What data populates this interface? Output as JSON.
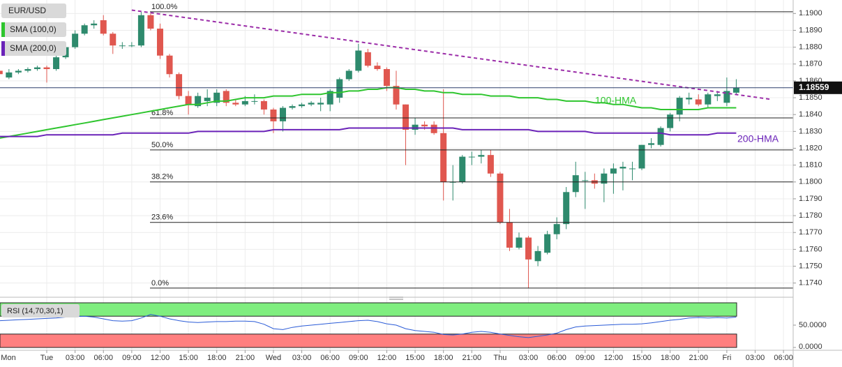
{
  "chart_data": {
    "type": "candlestick",
    "symbol": "EUR/USD",
    "categories": [
      "Mon",
      null,
      null,
      null,
      null,
      "Tue",
      null,
      null,
      "03:00",
      null,
      null,
      "06:00",
      null,
      null,
      "09:00",
      null,
      null,
      "12:00",
      null,
      null,
      "15:00",
      null,
      null,
      "18:00",
      null,
      null,
      "21:00",
      null,
      null,
      "Wed",
      null,
      null,
      "03:00",
      null,
      null,
      "06:00",
      null,
      null,
      "09:00",
      null,
      null,
      "12:00",
      null,
      null,
      "15:00",
      null,
      null,
      "18:00",
      null,
      null,
      "21:00",
      null,
      null,
      "Thu",
      null,
      null,
      "03:00",
      null,
      null,
      "06:00",
      null,
      null,
      "09:00",
      null,
      null,
      "12:00",
      null,
      null,
      "15:00",
      null,
      null,
      "18:00",
      null,
      null,
      "21:00",
      null,
      null,
      "Fri",
      null,
      null,
      "03:00",
      null,
      null,
      "06:00"
    ],
    "open": [
      1.1866,
      1.1862,
      1.1865,
      1.1866,
      1.1867,
      1.1868,
      1.1867,
      1.1874,
      1.188,
      1.1888,
      1.1893,
      1.1896,
      1.1888,
      1.1881,
      1.1881,
      1.1881,
      1.1899,
      1.1891,
      1.1875,
      1.1864,
      1.1851,
      1.1845,
      1.1848,
      1.1847,
      1.1854,
      1.1847,
      1.1846,
      1.1848,
      1.1848,
      1.1843,
      1.1836,
      1.1844,
      1.1845,
      1.1846,
      1.1846,
      1.1846,
      1.185,
      1.1861,
      1.1866,
      1.1877,
      1.1869,
      1.1867,
      1.1857,
      1.1846,
      1.1831,
      1.1834,
      1.1834,
      1.1829,
      1.18,
      1.18,
      1.1815,
      1.1815,
      1.1816,
      1.1805,
      1.1776,
      1.1761,
      1.1767,
      1.1753,
      1.1758,
      1.1769,
      1.1775,
      1.1794,
      1.1801,
      1.1801,
      1.1799,
      1.1805,
      1.1808,
      1.1808,
      1.1808,
      1.1822,
      1.1822,
      1.1832,
      1.184,
      1.1849,
      1.1849,
      1.1846,
      1.1851,
      1.1847,
      1.1853,
      null,
      null,
      null,
      null,
      null
    ],
    "high": [
      1.1868,
      1.1867,
      1.1867,
      1.1868,
      1.1869,
      1.1869,
      1.1876,
      1.1882,
      1.189,
      1.1894,
      1.1896,
      1.1899,
      1.1889,
      1.1883,
      1.1883,
      1.1901,
      1.19,
      1.1894,
      1.1876,
      1.1865,
      1.1854,
      1.1853,
      1.1855,
      1.1855,
      1.1855,
      1.1849,
      1.1851,
      1.1852,
      1.1849,
      1.1844,
      1.1845,
      1.1846,
      1.1847,
      1.1848,
      1.185,
      1.1855,
      1.1862,
      1.1867,
      1.1882,
      1.1879,
      1.1871,
      1.1868,
      1.1866,
      1.1846,
      1.1838,
      1.1836,
      1.1836,
      1.1855,
      1.181,
      1.1816,
      1.1818,
      1.1819,
      1.1819,
      1.1806,
      1.1784,
      1.177,
      1.1768,
      1.1762,
      1.1771,
      1.1779,
      1.1797,
      1.1812,
      1.1806,
      1.1805,
      1.1808,
      1.1811,
      1.1812,
      1.1812,
      1.1822,
      1.1826,
      1.1833,
      1.1841,
      1.1851,
      1.1853,
      1.1852,
      1.1853,
      1.1854,
      1.1862,
      1.1861,
      null,
      null,
      null,
      null,
      null
    ],
    "low": [
      1.1863,
      1.1861,
      1.1864,
      1.1865,
      1.1866,
      1.1859,
      1.1866,
      1.1873,
      1.1879,
      1.1887,
      1.1891,
      1.1887,
      1.1876,
      1.1879,
      1.188,
      1.188,
      1.189,
      1.1873,
      1.1862,
      1.1849,
      1.184,
      1.1844,
      1.1845,
      1.1845,
      1.1845,
      1.1845,
      1.1845,
      1.1846,
      1.184,
      1.1829,
      1.183,
      1.1843,
      1.1844,
      1.1845,
      1.1842,
      1.1842,
      1.1847,
      1.186,
      1.1865,
      1.1868,
      1.1866,
      1.1854,
      1.1843,
      1.181,
      1.1828,
      1.1831,
      1.1828,
      1.1789,
      1.1789,
      1.1799,
      1.181,
      1.1811,
      1.1803,
      1.1775,
      1.1759,
      1.176,
      1.1737,
      1.175,
      1.1757,
      1.1766,
      1.1772,
      1.1791,
      1.1784,
      1.1796,
      1.1788,
      1.1793,
      1.1795,
      1.1801,
      1.1807,
      1.182,
      1.1821,
      1.183,
      1.1836,
      1.1846,
      1.1845,
      1.1844,
      1.1848,
      1.1845,
      1.1852,
      null,
      null,
      null,
      null,
      null
    ],
    "close": [
      1.1864,
      1.1865,
      1.1866,
      1.1867,
      1.1868,
      1.1867,
      1.1874,
      1.188,
      1.1888,
      1.1893,
      1.1894,
      1.1888,
      1.1881,
      1.1881,
      1.1881,
      1.1899,
      1.1891,
      1.1875,
      1.1864,
      1.1851,
      1.1846,
      1.1851,
      1.185,
      1.1853,
      1.1847,
      1.1846,
      1.1848,
      1.1848,
      1.1843,
      1.1836,
      1.1844,
      1.1845,
      1.1846,
      1.1847,
      1.1847,
      1.1854,
      1.1861,
      1.1866,
      1.1878,
      1.1869,
      1.1867,
      1.1857,
      1.1846,
      1.1831,
      1.1834,
      1.1833,
      1.1829,
      1.18,
      1.18,
      1.1815,
      1.1815,
      1.1816,
      1.1805,
      1.1776,
      1.1761,
      1.1767,
      1.1754,
      1.1759,
      1.1769,
      1.1775,
      1.1794,
      1.1804,
      1.1801,
      1.1799,
      1.1805,
      1.1808,
      1.1809,
      1.1808,
      1.1822,
      1.1823,
      1.1832,
      1.184,
      1.185,
      1.185,
      1.1846,
      1.1852,
      1.1852,
      1.1854,
      1.18559,
      null,
      null,
      null,
      null,
      null
    ],
    "up_color": "#2e8a6d",
    "down_color": "#e0574f",
    "series": [
      {
        "name": "SMA (100,0)",
        "label": "100-HMA",
        "color": "#2ec52e",
        "values": [
          1.1826,
          1.1827,
          1.1828,
          1.1829,
          1.183,
          1.1831,
          1.1832,
          1.1833,
          1.1834,
          1.1835,
          1.1836,
          1.1837,
          1.1838,
          1.1839,
          1.184,
          1.1841,
          1.1842,
          1.1843,
          1.1844,
          1.1845,
          1.1846,
          1.1846,
          1.1847,
          1.1848,
          1.1848,
          1.1849,
          1.185,
          1.185,
          1.185,
          1.1851,
          1.1851,
          1.1851,
          1.1852,
          1.1852,
          1.1852,
          1.1853,
          1.1853,
          1.1854,
          1.1854,
          1.1855,
          1.1855,
          1.1856,
          1.1856,
          1.1855,
          1.1855,
          1.1854,
          1.1854,
          1.1853,
          1.1853,
          1.1852,
          1.1852,
          1.1852,
          1.1851,
          1.1851,
          1.1851,
          1.185,
          1.185,
          1.185,
          1.1849,
          1.1849,
          1.1848,
          1.1848,
          1.1848,
          1.1847,
          1.1847,
          1.1846,
          1.1846,
          1.1845,
          1.1844,
          1.1844,
          1.1843,
          1.1843,
          1.1843,
          1.1843,
          1.1843,
          1.1844,
          1.1844,
          1.1844,
          1.1844,
          null,
          null,
          null,
          null,
          null
        ]
      },
      {
        "name": "SMA (200,0)",
        "label": "200-HMA",
        "color": "#6a22b8",
        "values": [
          1.1827,
          1.1827,
          1.1827,
          1.1827,
          1.1827,
          1.1828,
          1.1828,
          1.1828,
          1.1828,
          1.1828,
          1.1828,
          1.1828,
          1.1828,
          1.1829,
          1.1829,
          1.1829,
          1.1829,
          1.1829,
          1.1829,
          1.1829,
          1.1829,
          1.183,
          1.183,
          1.183,
          1.183,
          1.183,
          1.183,
          1.183,
          1.183,
          1.1831,
          1.1831,
          1.1831,
          1.1831,
          1.1831,
          1.1831,
          1.1831,
          1.1831,
          1.1832,
          1.1832,
          1.1832,
          1.1832,
          1.1832,
          1.1832,
          1.1832,
          1.1832,
          1.1832,
          1.1832,
          1.1832,
          1.1832,
          1.1831,
          1.1831,
          1.1831,
          1.1831,
          1.1831,
          1.1831,
          1.1831,
          1.1831,
          1.183,
          1.183,
          1.183,
          1.183,
          1.183,
          1.183,
          1.1829,
          1.1829,
          1.1829,
          1.1829,
          1.1829,
          1.1829,
          1.1829,
          1.1829,
          1.1828,
          1.1828,
          1.1828,
          1.1828,
          1.1828,
          1.1829,
          1.1829,
          1.1829,
          null,
          null,
          null,
          null,
          null
        ]
      }
    ],
    "fib_levels": [
      {
        "label": "100.0%",
        "value": 1.1901
      },
      {
        "label": "61.8%",
        "value": 1.1838
      },
      {
        "label": "50.0%",
        "value": 1.1819
      },
      {
        "label": "38.2%",
        "value": 1.18
      },
      {
        "label": "23.6%",
        "value": 1.1776
      },
      {
        "label": "0.0%",
        "value": 1.1737
      }
    ],
    "trendline": {
      "x": [
        14,
        81.7
      ],
      "y": [
        1.1902,
        1.1849
      ],
      "color": "#9b2ca8"
    },
    "last_price": 1.18559,
    "ylim": [
      1.1732,
      1.1908
    ],
    "yticks": [
      {
        "value": 1.174,
        "label": "1.1740"
      },
      {
        "value": 1.175,
        "label": "1.1750"
      },
      {
        "value": 1.176,
        "label": "1.1760"
      },
      {
        "value": 1.177,
        "label": "1.1770"
      },
      {
        "value": 1.178,
        "label": "1.1780"
      },
      {
        "value": 1.179,
        "label": "1.1790"
      },
      {
        "value": 1.18,
        "label": "1.1800"
      },
      {
        "value": 1.181,
        "label": "1.1810"
      },
      {
        "value": 1.182,
        "label": "1.1820"
      },
      {
        "value": 1.183,
        "label": "1.1830"
      },
      {
        "value": 1.184,
        "label": "1.1840"
      },
      {
        "value": 1.185,
        "label": "1.1850"
      },
      {
        "value": 1.186,
        "label": "1.1860"
      },
      {
        "value": 1.187,
        "label": "1.1870"
      },
      {
        "value": 1.188,
        "label": "1.1880"
      },
      {
        "value": 1.189,
        "label": "1.1890"
      },
      {
        "value": 1.19,
        "label": "1.1900"
      }
    ],
    "grid": true,
    "rsi": {
      "name": "RSI (14,70,30,1)",
      "color": "#2a5bd7",
      "upper": 70,
      "lower": 30,
      "upper_color": "#7fee7f",
      "lower_color": "#ff7f7f",
      "ylim": [
        0,
        100
      ],
      "yticks": [
        {
          "value": 50,
          "label": "50.0000"
        },
        {
          "value": 0,
          "label": "0.0000"
        }
      ],
      "values": [
        60,
        61,
        62,
        63,
        64,
        65,
        66,
        68,
        69,
        70,
        68,
        64,
        60,
        59,
        60,
        66,
        74,
        70,
        64,
        60,
        57,
        56,
        57,
        58,
        58,
        59,
        59,
        58,
        52,
        42,
        40,
        45,
        48,
        50,
        52,
        54,
        56,
        58,
        60,
        61,
        58,
        53,
        50,
        42,
        38,
        36,
        34,
        29,
        28,
        30,
        34,
        36,
        34,
        30,
        27,
        24,
        22,
        25,
        28,
        32,
        40,
        46,
        48,
        49,
        50,
        51,
        52,
        52,
        53,
        55,
        58,
        61,
        63,
        66,
        67,
        66,
        67,
        66,
        68,
        null,
        null,
        null,
        null,
        null
      ]
    }
  }
}
